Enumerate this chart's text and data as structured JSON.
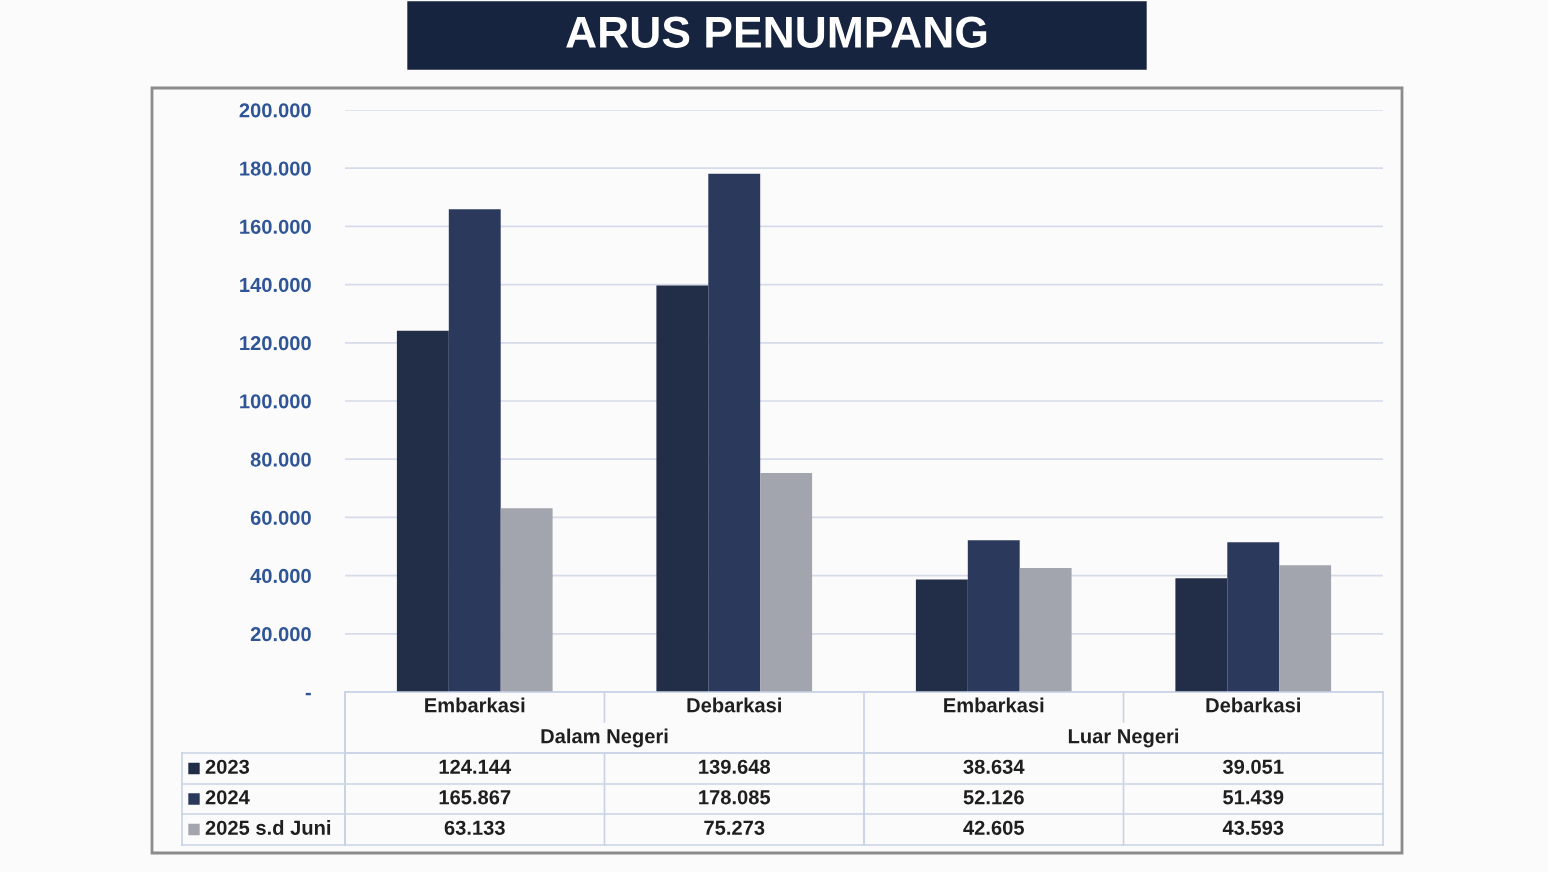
{
  "chart_data": {
    "type": "bar",
    "title": "ARUS PENUMPANG",
    "categories": [
      "Embarkasi",
      "Debarkasi",
      "Embarkasi",
      "Debarkasi"
    ],
    "annotations": [
      "Dalam Negeri",
      "Luar Negeri"
    ],
    "series": [
      {
        "name": "2023",
        "color": "#222d48",
        "values": [
          124144,
          139648,
          38634,
          39051
        ],
        "value_labels": [
          "124.144",
          "139.648",
          "38.634",
          "39.051"
        ]
      },
      {
        "name": "2024",
        "color": "#2b3a5c",
        "values": [
          165867,
          178085,
          52126,
          51439
        ],
        "value_labels": [
          "165.867",
          "178.085",
          "52.126",
          "51.439"
        ]
      },
      {
        "name": "2025 s.d Juni",
        "color": "#a3a5ae",
        "values": [
          63133,
          75273,
          42605,
          43593
        ],
        "value_labels": [
          "63.133",
          "75.273",
          "42.605",
          "43.593"
        ]
      }
    ],
    "ylim": [
      0,
      200000
    ],
    "yticks": [
      {
        "value": 0,
        "label": "-"
      },
      {
        "value": 20000,
        "label": "20.000"
      },
      {
        "value": 40000,
        "label": "40.000"
      },
      {
        "value": 60000,
        "label": "60.000"
      },
      {
        "value": 80000,
        "label": "80.000"
      },
      {
        "value": 100000,
        "label": "100.000"
      },
      {
        "value": 120000,
        "label": "120.000"
      },
      {
        "value": 140000,
        "label": "140.000"
      },
      {
        "value": 160000,
        "label": "160.000"
      },
      {
        "value": 180000,
        "label": "180.000"
      },
      {
        "value": 200000,
        "label": "200.000"
      }
    ],
    "grid": "y",
    "legend": "bottom left"
  }
}
